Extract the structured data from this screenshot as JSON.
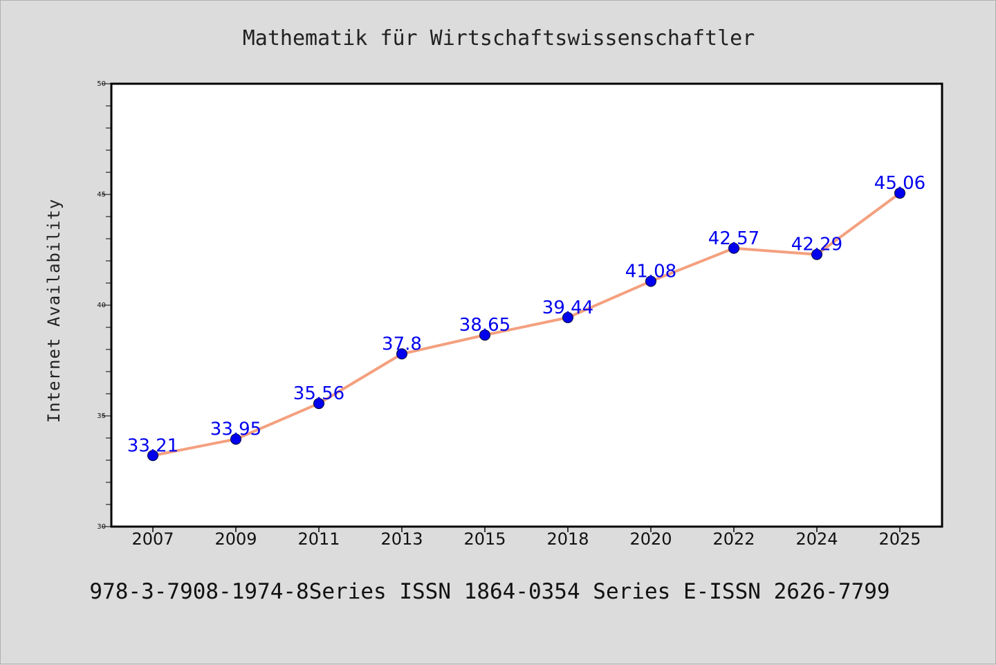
{
  "chart_data": {
    "type": "line",
    "title": "Mathematik für Wirtschaftswissenschaftler",
    "xlabel": "",
    "ylabel": "Internet Availability",
    "footer": "978-3-7908-1974-8Series ISSN 1864-0354 Series E-ISSN 2626-7799",
    "categories": [
      "2007",
      "2009",
      "2011",
      "2013",
      "2015",
      "2018",
      "2020",
      "2022",
      "2024",
      "2025"
    ],
    "series": [
      {
        "values": [
          33.21,
          33.95,
          35.56,
          37.8,
          38.65,
          39.44,
          41.08,
          42.57,
          42.29,
          45.06
        ],
        "labels": [
          "33.21",
          "33.95",
          "35.56",
          "37.8",
          "38.65",
          "39.44",
          "41.08",
          "42.57",
          "42.29",
          "45.06"
        ],
        "line_color": "#f4a07f",
        "marker_color": "#0000ee",
        "label_color": "#0000ee"
      }
    ],
    "ylim": [
      30,
      50
    ],
    "yticks": [
      "30",
      "35",
      "40",
      "45",
      "50"
    ],
    "grid": false,
    "legend": "none"
  }
}
